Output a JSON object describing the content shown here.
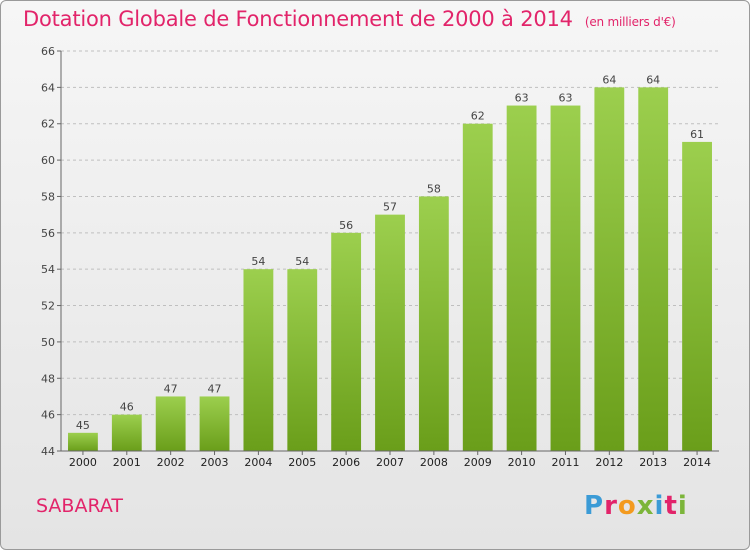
{
  "title": "Dotation Globale de Fonctionnement de 2000 à 2014",
  "subtitle": "(en milliers d'€)",
  "commune": "SABARAT",
  "logo": {
    "letters": [
      "P",
      "r",
      "o",
      "x",
      "i",
      "t",
      "i"
    ]
  },
  "colors": {
    "title": "#e2246a",
    "bar_top": "#9ccf4e",
    "bar_bottom": "#6a9e1a",
    "grid": "#bfbfbf"
  },
  "chart_data": {
    "type": "bar",
    "categories": [
      "2000",
      "2001",
      "2002",
      "2003",
      "2004",
      "2005",
      "2006",
      "2007",
      "2008",
      "2009",
      "2010",
      "2011",
      "2012",
      "2013",
      "2014"
    ],
    "values": [
      45,
      46,
      47,
      47,
      54,
      54,
      56,
      57,
      58,
      62,
      63,
      63,
      64,
      64,
      61
    ],
    "ylim": [
      44,
      66
    ],
    "yticks": [
      44,
      46,
      48,
      50,
      52,
      54,
      56,
      58,
      60,
      62,
      64,
      66
    ],
    "grid": "horizontal dashed",
    "xlabel": "",
    "ylabel": ""
  }
}
